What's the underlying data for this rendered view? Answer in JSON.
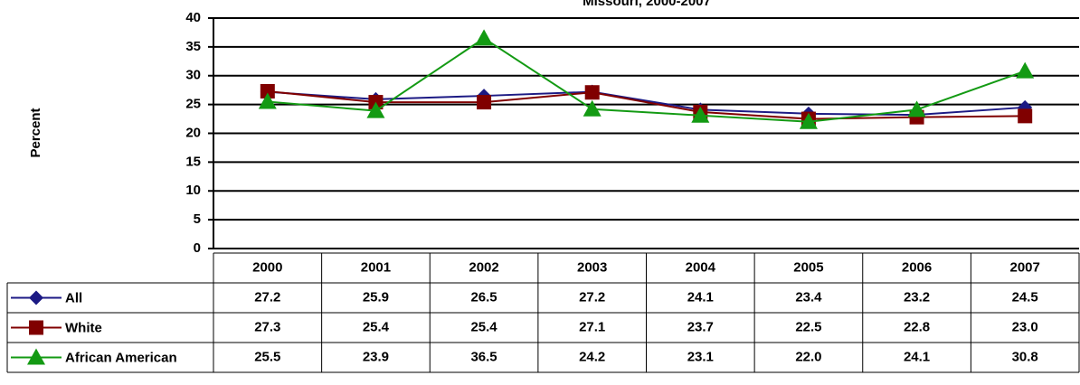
{
  "chart_data": {
    "type": "line",
    "title": "Missouri, 2000-2007",
    "y_label": "Percent",
    "categories": [
      "2000",
      "2001",
      "2002",
      "2003",
      "2004",
      "2005",
      "2006",
      "2007"
    ],
    "series": [
      {
        "name": "All",
        "color": "#1c1a84",
        "marker": "diamond",
        "values": [
          27.2,
          25.9,
          26.5,
          27.2,
          24.1,
          23.4,
          23.2,
          24.5
        ],
        "value_labels": [
          "27.2",
          "25.9",
          "26.5",
          "27.2",
          "24.1",
          "23.4",
          "23.2",
          "24.5"
        ]
      },
      {
        "name": "White",
        "color": "#800000",
        "marker": "square",
        "values": [
          27.3,
          25.4,
          25.4,
          27.1,
          23.7,
          22.5,
          22.8,
          23.0
        ],
        "value_labels": [
          "27.3",
          "25.4",
          "25.4",
          "27.1",
          "23.7",
          "22.5",
          "22.8",
          "23.0"
        ]
      },
      {
        "name": "African American",
        "color": "#139a13",
        "marker": "triangle",
        "values": [
          25.5,
          23.9,
          36.5,
          24.2,
          23.1,
          22.0,
          24.1,
          30.8
        ],
        "value_labels": [
          "25.5",
          "23.9",
          "36.5",
          "24.2",
          "23.1",
          "22.0",
          "24.1",
          "30.8"
        ]
      }
    ],
    "ylim": [
      0,
      40
    ],
    "yticks": [
      0,
      5,
      10,
      15,
      20,
      25,
      30,
      35,
      40
    ],
    "grid": true
  }
}
